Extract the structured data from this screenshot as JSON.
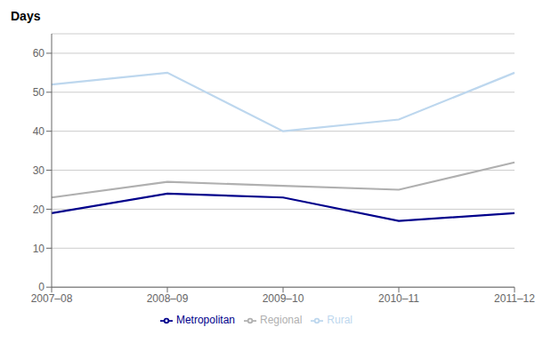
{
  "chart_data": {
    "type": "line",
    "ylabel": "Days",
    "categories": [
      "2007–08",
      "2008–09",
      "2009–10",
      "2010–11",
      "2011–12"
    ],
    "series": [
      {
        "name": "Metropolitan",
        "color": "#00008B",
        "values": [
          19,
          24,
          23,
          17,
          19
        ]
      },
      {
        "name": "Regional",
        "color": "#B0B0B0",
        "values": [
          23,
          27,
          26,
          25,
          32
        ]
      },
      {
        "name": "Rural",
        "color": "#BDD7EE",
        "values": [
          52,
          55,
          40,
          43,
          55
        ]
      }
    ],
    "ylim": [
      0,
      65
    ],
    "yticks": [
      0,
      10,
      20,
      30,
      40,
      50,
      60
    ],
    "grid": true,
    "legend": "bottom"
  }
}
